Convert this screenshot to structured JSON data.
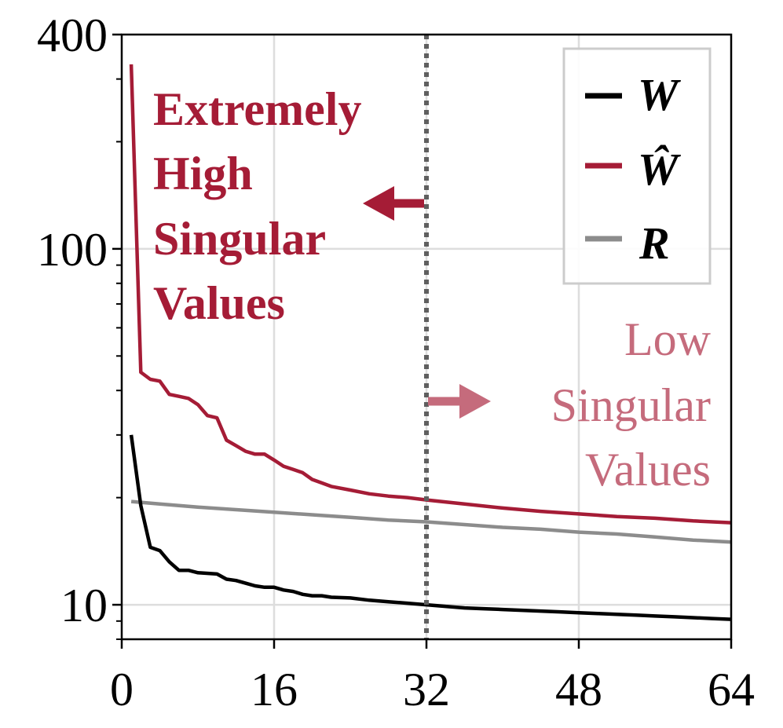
{
  "chart_data": {
    "type": "line",
    "title": "",
    "xlabel": "",
    "ylabel": "",
    "xlim": [
      0,
      64
    ],
    "ylim": [
      8,
      400
    ],
    "yscale": "log",
    "x_ticks": [
      0,
      16,
      32,
      48,
      64
    ],
    "x_tick_labels": [
      "0",
      "16",
      "32",
      "48",
      "64"
    ],
    "y_ticks": [
      10,
      100,
      400
    ],
    "y_tick_labels": [
      "10",
      "100",
      "400"
    ],
    "grid": true,
    "legend_position": "top-right",
    "vline": {
      "x": 32,
      "style": "dotted"
    },
    "series": [
      {
        "name": "W",
        "color": "#000000",
        "x": [
          1,
          2,
          3,
          4,
          5,
          6,
          7,
          8,
          10,
          11,
          12,
          13,
          14,
          15,
          16,
          17,
          18,
          19,
          20,
          21,
          22,
          24,
          26,
          28,
          30,
          32,
          34,
          36,
          38,
          40,
          42,
          44,
          46,
          48,
          50,
          52,
          54,
          56,
          58,
          60,
          62,
          64
        ],
        "y": [
          30,
          19,
          14.5,
          14.2,
          13.2,
          12.5,
          12.5,
          12.3,
          12.2,
          11.8,
          11.7,
          11.5,
          11.3,
          11.2,
          11.2,
          11,
          10.9,
          10.7,
          10.6,
          10.6,
          10.5,
          10.45,
          10.3,
          10.2,
          10.1,
          10.0,
          9.9,
          9.8,
          9.75,
          9.7,
          9.65,
          9.6,
          9.55,
          9.5,
          9.45,
          9.4,
          9.35,
          9.3,
          9.25,
          9.2,
          9.15,
          9.1
        ]
      },
      {
        "name": "Ŵ",
        "color": "#a51c36",
        "x": [
          1,
          2,
          3,
          4,
          5,
          6,
          7,
          8,
          9,
          10,
          11,
          12,
          13,
          14,
          15,
          16,
          17,
          18,
          19,
          20,
          21,
          22,
          24,
          26,
          28,
          30,
          32,
          36,
          40,
          44,
          48,
          52,
          56,
          60,
          64
        ],
        "y": [
          330,
          45,
          43,
          42.5,
          39,
          38.5,
          38,
          36.5,
          34,
          33.5,
          29,
          28,
          27,
          26.5,
          26.5,
          25.5,
          24.5,
          24,
          23.5,
          22.5,
          22,
          21.5,
          21,
          20.5,
          20.2,
          20,
          19.7,
          19.2,
          18.7,
          18.3,
          18,
          17.7,
          17.5,
          17.2,
          17
        ]
      },
      {
        "name": "R",
        "color": "#8c8c8c",
        "x": [
          1,
          4,
          8,
          12,
          16,
          20,
          24,
          28,
          32,
          36,
          40,
          44,
          48,
          52,
          56,
          60,
          64
        ],
        "y": [
          19.5,
          19.2,
          18.8,
          18.5,
          18.2,
          17.9,
          17.6,
          17.3,
          17.1,
          16.8,
          16.5,
          16.3,
          16,
          15.8,
          15.5,
          15.2,
          15
        ]
      }
    ],
    "annotations": {
      "left_text": [
        "Extremely",
        "High",
        "Singular",
        "Values"
      ],
      "right_text": [
        "Low",
        "Singular",
        "Values"
      ],
      "left_color": "#a51c36",
      "right_color": "#c56b7c"
    }
  }
}
